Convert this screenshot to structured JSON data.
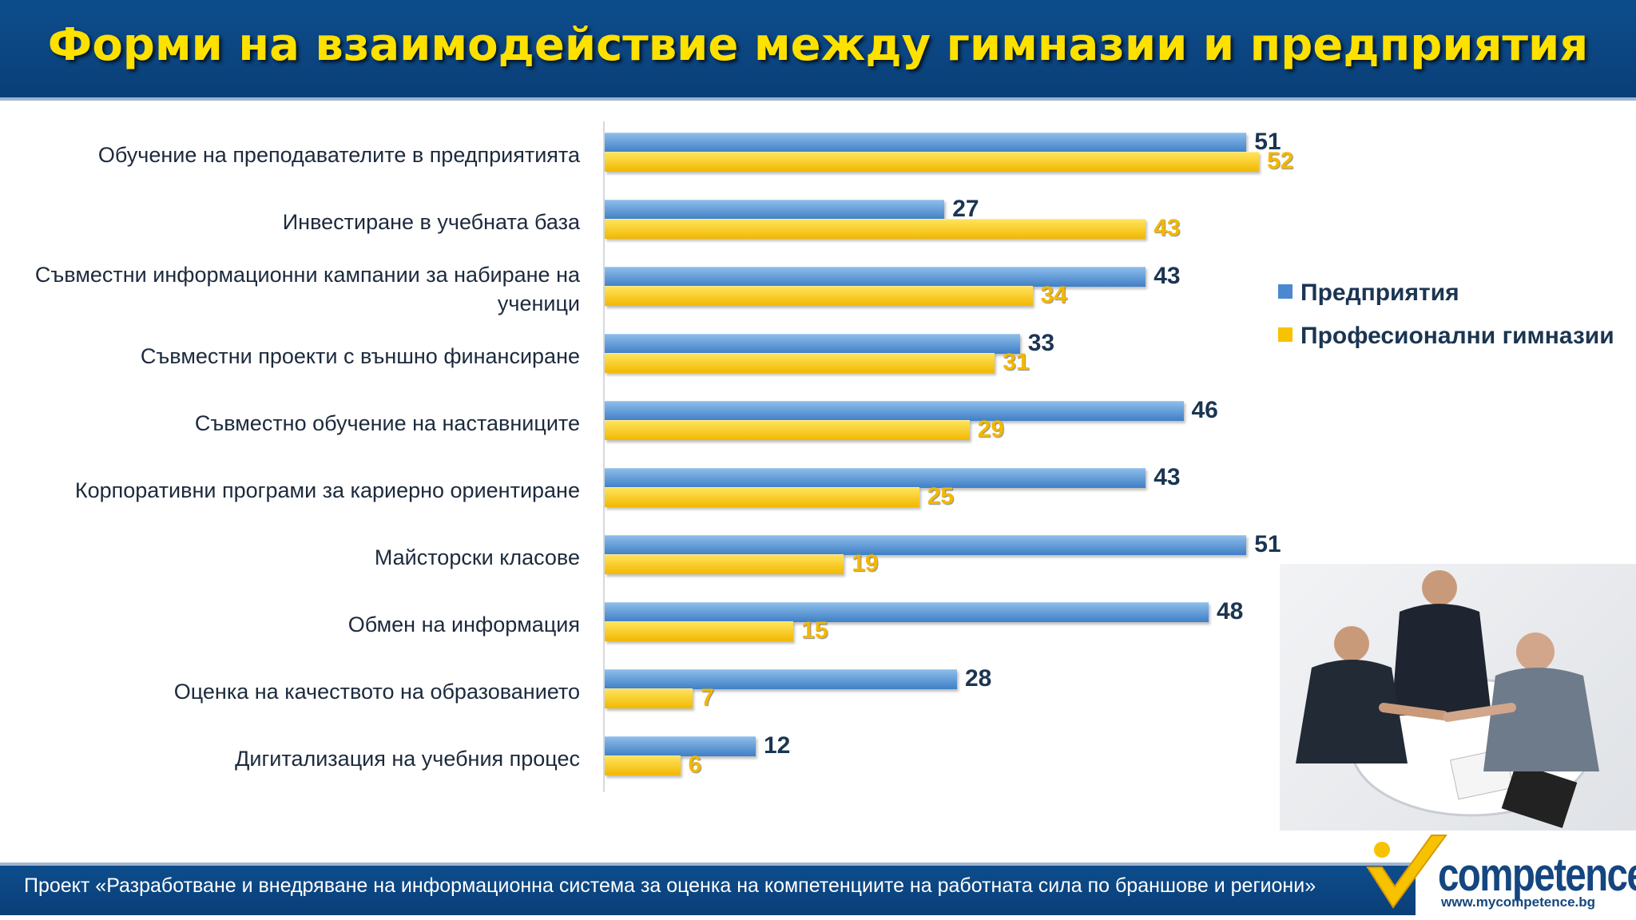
{
  "header": {
    "title": "Форми на взаимодействие между гимназии и предприятия"
  },
  "chart_data": {
    "type": "bar",
    "orientation": "horizontal",
    "categories": [
      [
        "Обучение на преподавателите в предприятията"
      ],
      [
        "Инвестиране в учебната база"
      ],
      [
        "Съвместни информационни кампании за набиране на",
        "ученици"
      ],
      [
        "Съвместни проекти с външно финансиране"
      ],
      [
        "Съвместно обучение на наставниците"
      ],
      [
        "Корпоративни програми за кариерно ориентиране"
      ],
      [
        "Майсторски класове"
      ],
      [
        "Обмен на информация"
      ],
      [
        "Оценка на качеството на образованието"
      ],
      [
        "Дигитализация на учебния процес"
      ]
    ],
    "series": [
      {
        "name": "Предприятия",
        "color": "#4a89d0",
        "values": [
          51,
          27,
          43,
          33,
          46,
          43,
          51,
          48,
          28,
          12
        ]
      },
      {
        "name": "Професионални гимназии",
        "color": "#f7c200",
        "values": [
          52,
          43,
          34,
          31,
          29,
          25,
          19,
          15,
          7,
          6
        ]
      }
    ],
    "xlim": [
      0,
      60
    ],
    "grid": false,
    "legend_position": "right"
  },
  "photo": {
    "icon": "business-handshake-photo"
  },
  "footer": {
    "text": "Проект «Разработване и внедряване на информационна система за оценка на компетенциите на работната сила по браншове и региони»",
    "logo": "competence",
    "url": "www.mycompetence.bg"
  }
}
